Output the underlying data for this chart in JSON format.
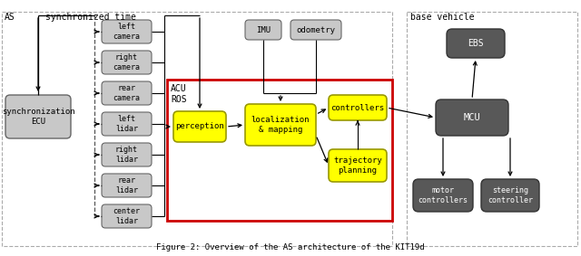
{
  "title": "Figure 2: Overview of the AS architecture of the KIT19d",
  "bg_color": "#ffffff",
  "box_yellow": "#ffff00",
  "box_light_gray": "#c8c8c8",
  "box_dark": "#585858",
  "red_border": "#cc0000",
  "dashed_color": "#aaaaaa",
  "arrow_color": "#000000",
  "sensors": [
    "left\ncamera",
    "right\ncamera",
    "rear\ncamera",
    "left\nlidar",
    "right\nlidar",
    "rear\nlidar",
    "center\nlidar"
  ]
}
